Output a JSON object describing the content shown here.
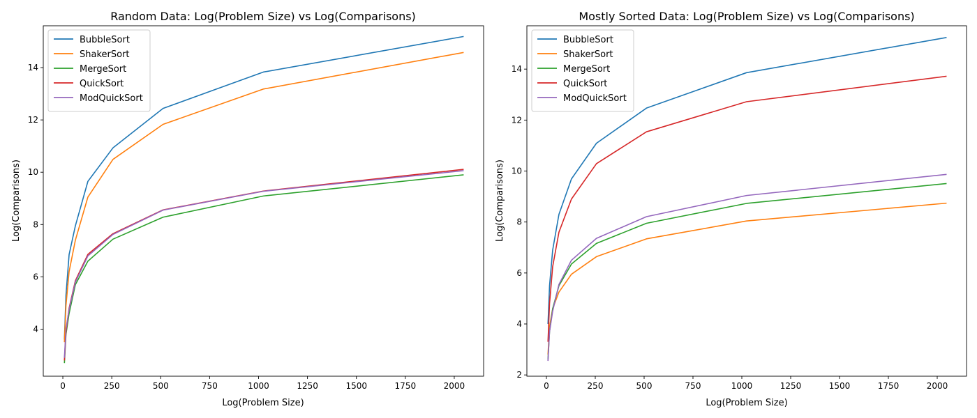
{
  "colors": {
    "BubbleSort": "#1f77b4",
    "ShakerSort": "#ff7f0e",
    "MergeSort": "#2ca02c",
    "QuickSort": "#d62728",
    "ModQuickSort": "#9467bd"
  },
  "chart_data": [
    {
      "type": "line",
      "title": "Random Data: Log(Problem Size) vs Log(Comparisons)",
      "xlabel": "Log(Problem Size)",
      "ylabel": "Log(Comparisons)",
      "xlim": [
        -100,
        2150
      ],
      "ylim": [
        2.2,
        15.6
      ],
      "xticks": [
        0,
        250,
        500,
        750,
        1000,
        1250,
        1500,
        1750,
        2000
      ],
      "yticks": [
        4,
        6,
        8,
        10,
        12,
        14
      ],
      "legend": "top-left",
      "grid": false,
      "x": [
        8,
        16,
        32,
        64,
        128,
        256,
        512,
        1024,
        2048
      ],
      "series": [
        {
          "name": "BubbleSort",
          "values": [
            3.6,
            5.3,
            6.85,
            7.95,
            9.65,
            10.93,
            12.44,
            13.83,
            15.19
          ]
        },
        {
          "name": "ShakerSort",
          "values": [
            3.5,
            4.9,
            6.2,
            7.4,
            9.05,
            10.49,
            11.83,
            13.18,
            14.58
          ]
        },
        {
          "name": "MergeSort",
          "values": [
            2.7,
            3.8,
            4.6,
            5.7,
            6.6,
            7.44,
            8.28,
            9.09,
            9.9
          ]
        },
        {
          "name": "QuickSort",
          "values": [
            2.8,
            3.9,
            4.8,
            5.85,
            6.86,
            7.65,
            8.56,
            9.28,
            10.11
          ]
        },
        {
          "name": "ModQuickSort",
          "values": [
            2.9,
            4.0,
            4.75,
            5.8,
            6.8,
            7.62,
            8.55,
            9.27,
            10.06
          ]
        }
      ]
    },
    {
      "type": "line",
      "title": "Mostly Sorted Data: Log(Problem Size) vs Log(Comparisons)",
      "xlabel": "Log(Problem Size)",
      "ylabel": "Log(Comparisons)",
      "xlim": [
        -100,
        2150
      ],
      "ylim": [
        1.95,
        15.7
      ],
      "xticks": [
        0,
        250,
        500,
        750,
        1000,
        1250,
        1500,
        1750,
        2000
      ],
      "yticks": [
        2,
        4,
        6,
        8,
        10,
        12,
        14
      ],
      "legend": "top-left",
      "grid": false,
      "x": [
        8,
        16,
        32,
        64,
        128,
        256,
        512,
        1024,
        2048
      ],
      "series": [
        {
          "name": "BubbleSort",
          "values": [
            4.0,
            5.5,
            6.9,
            8.3,
            9.69,
            11.09,
            12.47,
            13.86,
            15.24
          ]
        },
        {
          "name": "ShakerSort",
          "values": [
            2.8,
            3.9,
            4.6,
            5.25,
            5.95,
            6.64,
            7.34,
            8.04,
            8.74
          ]
        },
        {
          "name": "MergeSort",
          "values": [
            2.6,
            3.7,
            4.6,
            5.5,
            6.35,
            7.16,
            7.95,
            8.73,
            9.51
          ]
        },
        {
          "name": "QuickSort",
          "values": [
            3.3,
            4.8,
            6.25,
            7.6,
            8.9,
            10.29,
            11.54,
            12.72,
            13.72
          ]
        },
        {
          "name": "ModQuickSort",
          "values": [
            2.55,
            3.7,
            4.5,
            5.55,
            6.5,
            7.36,
            8.21,
            9.04,
            9.87
          ]
        }
      ]
    }
  ]
}
